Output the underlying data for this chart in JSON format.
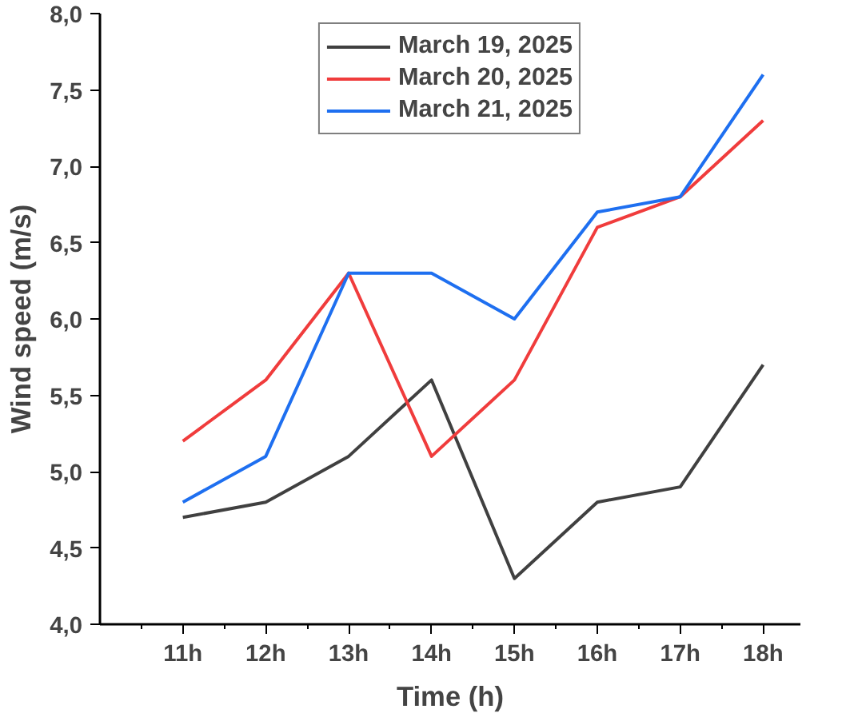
{
  "chart_data": {
    "type": "line",
    "xlabel": "Time (h)",
    "ylabel": "Wind speed (m/s)",
    "categories": [
      "11h",
      "12h",
      "13h",
      "14h",
      "15h",
      "16h",
      "17h",
      "18h"
    ],
    "ylim": [
      4.0,
      8.0
    ],
    "yticks": [
      {
        "value": 4.0,
        "label": "4,0"
      },
      {
        "value": 4.5,
        "label": "4,5"
      },
      {
        "value": 5.0,
        "label": "5,0"
      },
      {
        "value": 5.5,
        "label": "5,5"
      },
      {
        "value": 6.0,
        "label": "6,0"
      },
      {
        "value": 6.5,
        "label": "6,5"
      },
      {
        "value": 7.0,
        "label": "7,0"
      },
      {
        "value": 7.5,
        "label": "7,5"
      },
      {
        "value": 8.0,
        "label": "8,0"
      }
    ],
    "series": [
      {
        "name": "March 19, 2025",
        "color": "#404040",
        "values": [
          4.7,
          4.8,
          5.1,
          5.6,
          4.3,
          4.8,
          4.9,
          5.7
        ]
      },
      {
        "name": "March 20, 2025",
        "color": "#f03c3c",
        "values": [
          5.2,
          5.6,
          6.3,
          5.1,
          5.6,
          6.6,
          6.8,
          7.3
        ]
      },
      {
        "name": "March 21, 2025",
        "color": "#1e6ff0",
        "values": [
          4.8,
          5.1,
          6.3,
          6.3,
          6.0,
          6.7,
          6.8,
          7.6
        ]
      }
    ],
    "legend": "top",
    "grid": false,
    "marker": "none",
    "line_style": "solid"
  }
}
